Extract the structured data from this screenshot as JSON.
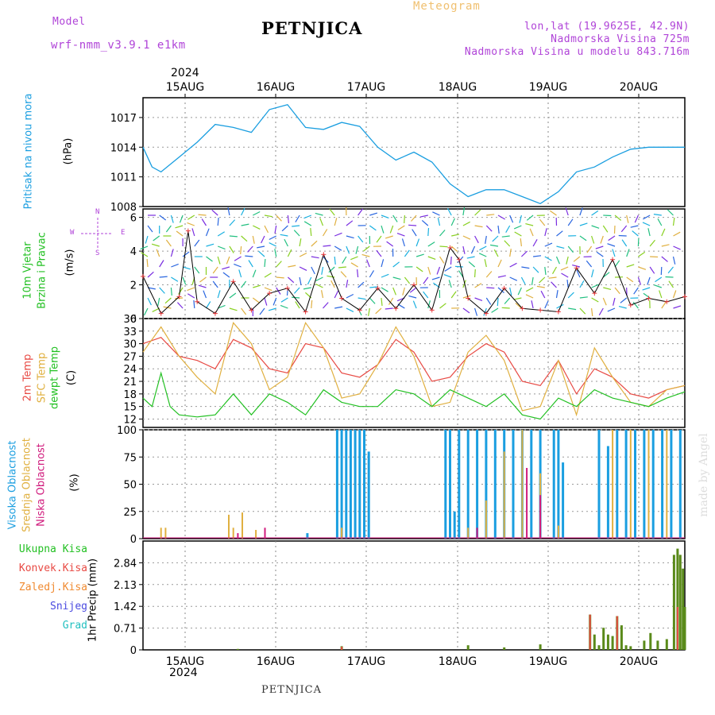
{
  "header": {
    "model_label": "Model",
    "model_name": "wrf-nmm_v3.9.1  e1km",
    "title": "PETNJICA",
    "meteogram_label": "Meteogram",
    "lonlat": "lon,lat (19.9625E, 42.9N)",
    "altitude": "Nadmorska Visina 725m",
    "model_altitude": "Nadmorska Visina u modelu 843.716m"
  },
  "axis_time": {
    "year": "2024",
    "days": [
      "15AUG",
      "16AUG",
      "17AUG",
      "18AUG",
      "19AUG",
      "20AUG"
    ]
  },
  "footer": {
    "station": "PETNJICA"
  },
  "watermark": "made by Angel",
  "colors": {
    "pressure": "#1a9ee0",
    "wind_line": "#000000",
    "wind_marker": "#e8383b",
    "t2m": "#e84a44",
    "sfc": "#e0b040",
    "dew": "#22c022",
    "cloud_high": "#1a9ee0",
    "cloud_mid": "#e0b040",
    "cloud_low": "#d01a7c",
    "precip_total": "#5a8a1a",
    "precip_conv": "#e84a44"
  },
  "panels": {
    "pressure": {
      "label": "Pritisak na nivou mora",
      "unit": "(hPa)"
    },
    "wind": {
      "label1": "10m Vjetar",
      "label2": "Brzina i Pravac",
      "unit": "(m/s)",
      "compass_n": "N",
      "compass_s": "S",
      "compass_w": "W",
      "compass_e": "E"
    },
    "temp": {
      "label_t2m": "2m Temp",
      "label_sfc": "SFC Temp",
      "label_dew": "dewpt Temp",
      "unit": "(C)"
    },
    "cloud": {
      "label_high": "Visoka Oblacnost",
      "label_mid": "Srednja Oblacnost",
      "label_low": "Niska Oblacnost",
      "unit": "(%)"
    },
    "precip": {
      "legend": [
        "Ukupna Kisa",
        "Konvek.Kisa",
        "Zaledj.Kisa",
        "Snijeg",
        "Grad"
      ],
      "legend_colors": [
        "#22c022",
        "#e84a44",
        "#f08a30",
        "#4a4ae0",
        "#22c0c0"
      ],
      "unit": "1hr Precip (mm)"
    }
  },
  "chart_data": [
    {
      "type": "line",
      "title": "Pritisak na nivou mora",
      "ylabel": "(hPa)",
      "ylim": [
        1008,
        1019
      ],
      "yticks": [
        "1008",
        "1011",
        "1014",
        "1017"
      ],
      "x_range_days": [
        0,
        6
      ],
      "series": [
        {
          "x": [
            0,
            0.1,
            0.2,
            0.4,
            0.6,
            0.8,
            1.0,
            1.2,
            1.4,
            1.6,
            1.8,
            2.0,
            2.2,
            2.4,
            2.6,
            2.8,
            3.0,
            3.2,
            3.4,
            3.6,
            3.8,
            4.0,
            4.2,
            4.4,
            4.6,
            4.8,
            5.0,
            5.2,
            5.4,
            5.6,
            5.8,
            6.0
          ],
          "y": [
            1014,
            1012,
            1011.5,
            1013,
            1014.5,
            1016.3,
            1016.0,
            1015.5,
            1017.8,
            1018.3,
            1016.0,
            1015.8,
            1016.5,
            1016.1,
            1014.0,
            1012.7,
            1013.5,
            1012.5,
            1010.3,
            1009.0,
            1009.7,
            1009.7,
            1009.0,
            1008.3,
            1009.5,
            1011.5,
            1012.0,
            1013.0,
            1013.8,
            1014.0,
            1014.0,
            1014.0
          ]
        }
      ]
    },
    {
      "type": "line",
      "title": "10m Vjetar Brzina i Pravac",
      "ylabel": "(m/s)",
      "ylim": [
        0,
        6.5
      ],
      "yticks": [
        "0",
        "2",
        "4",
        "6"
      ],
      "series": [
        {
          "x": [
            0,
            0.2,
            0.4,
            0.5,
            0.6,
            0.8,
            1.0,
            1.2,
            1.4,
            1.6,
            1.8,
            2.0,
            2.2,
            2.4,
            2.6,
            2.8,
            3.0,
            3.2,
            3.4,
            3.5,
            3.6,
            3.8,
            4.0,
            4.2,
            4.4,
            4.6,
            4.8,
            5.0,
            5.2,
            5.4,
            5.6,
            5.8,
            6.0
          ],
          "y": [
            2.5,
            0.3,
            1.3,
            5.2,
            1.0,
            0.3,
            2.2,
            0.5,
            1.5,
            1.8,
            0.4,
            3.8,
            1.2,
            0.5,
            1.8,
            0.6,
            2.0,
            0.5,
            4.2,
            3.5,
            1.2,
            0.3,
            1.8,
            0.6,
            0.5,
            0.4,
            3.0,
            1.5,
            3.5,
            0.8,
            1.2,
            1.0,
            1.3
          ]
        }
      ]
    },
    {
      "type": "line",
      "title": "Temperatura",
      "ylabel": "(C)",
      "ylim": [
        10,
        36
      ],
      "yticks": [
        "12",
        "15",
        "18",
        "21",
        "24",
        "27",
        "30",
        "33",
        "36"
      ],
      "series": [
        {
          "name": "2m Temp",
          "x": [
            0,
            0.2,
            0.4,
            0.6,
            0.8,
            1.0,
            1.2,
            1.4,
            1.6,
            1.8,
            2.0,
            2.2,
            2.4,
            2.6,
            2.8,
            3.0,
            3.2,
            3.4,
            3.6,
            3.8,
            4.0,
            4.2,
            4.4,
            4.6,
            4.8,
            5.0,
            5.2,
            5.4,
            5.6,
            5.8,
            6.0
          ],
          "y": [
            30,
            31.5,
            27,
            26,
            24,
            31,
            29,
            24,
            23,
            30,
            29,
            23,
            22,
            25,
            31,
            28,
            21,
            22,
            27,
            30,
            28,
            21,
            20,
            26,
            18,
            24,
            22,
            18,
            17,
            19,
            20
          ]
        },
        {
          "name": "SFC Temp",
          "x": [
            0,
            0.2,
            0.4,
            0.6,
            0.8,
            1.0,
            1.2,
            1.4,
            1.6,
            1.8,
            2.0,
            2.2,
            2.4,
            2.6,
            2.8,
            3.0,
            3.2,
            3.4,
            3.6,
            3.8,
            4.0,
            4.2,
            4.4,
            4.6,
            4.8,
            5.0,
            5.2,
            5.4,
            5.6,
            5.8,
            6.0
          ],
          "y": [
            28,
            34,
            27,
            22,
            18,
            35,
            30,
            19,
            22,
            35,
            29,
            17,
            18,
            25,
            34,
            27,
            15,
            16,
            28,
            32,
            26,
            14,
            15,
            26,
            13,
            29,
            22,
            16,
            15,
            19,
            20
          ]
        },
        {
          "name": "dewpt Temp",
          "x": [
            0,
            0.1,
            0.2,
            0.3,
            0.4,
            0.6,
            0.8,
            1.0,
            1.2,
            1.4,
            1.6,
            1.8,
            2.0,
            2.2,
            2.4,
            2.6,
            2.8,
            3.0,
            3.2,
            3.4,
            3.6,
            3.8,
            4.0,
            4.2,
            4.4,
            4.6,
            4.8,
            5.0,
            5.2,
            5.4,
            5.6,
            5.8,
            6.0
          ],
          "y": [
            17,
            15,
            23,
            15,
            13,
            12.5,
            13,
            18,
            13,
            18,
            16,
            13,
            19,
            16,
            15,
            15,
            19,
            18,
            15,
            19,
            17,
            15,
            18,
            13,
            12,
            17,
            15,
            19,
            17,
            16,
            15,
            17,
            18.5
          ]
        }
      ]
    },
    {
      "type": "bar",
      "title": "Oblacnost",
      "ylabel": "(%)",
      "ylim": [
        0,
        100
      ],
      "yticks": [
        "0",
        "25",
        "50",
        "75",
        "100"
      ],
      "series": [
        {
          "name": "Visoka Oblacnost",
          "x": [
            1.82,
            2.15,
            2.2,
            2.25,
            2.3,
            2.35,
            2.4,
            2.45,
            2.5,
            3.35,
            3.4,
            3.45,
            3.5,
            3.6,
            3.7,
            3.8,
            3.9,
            4.0,
            4.1,
            4.2,
            4.3,
            4.4,
            4.55,
            4.6,
            4.65,
            5.05,
            5.15,
            5.25,
            5.35,
            5.45,
            5.55,
            5.65,
            5.75,
            5.85,
            5.95
          ],
          "y": [
            5,
            100,
            100,
            100,
            100,
            100,
            100,
            100,
            80,
            100,
            100,
            25,
            100,
            100,
            100,
            100,
            100,
            100,
            100,
            100,
            100,
            100,
            100,
            100,
            70,
            100,
            85,
            100,
            100,
            100,
            100,
            100,
            100,
            100,
            100
          ]
        },
        {
          "name": "Srednja Oblacnost",
          "x": [
            0.2,
            0.25,
            0.95,
            1.0,
            1.1,
            1.25,
            2.2,
            3.6,
            3.8,
            4.0,
            4.2,
            4.4,
            4.6,
            5.2,
            5.4,
            5.6,
            5.8
          ],
          "y": [
            10,
            10,
            22,
            10,
            24,
            8,
            10,
            10,
            35,
            80,
            100,
            60,
            12,
            100,
            100,
            100,
            100
          ]
        },
        {
          "name": "Niska Oblacnost",
          "x": [
            1.05,
            1.35,
            3.7,
            4.25,
            4.4
          ],
          "y": [
            5,
            10,
            10,
            65,
            40
          ]
        }
      ]
    },
    {
      "type": "bar",
      "title": "1hr Precip",
      "ylabel": "1hr Precip (mm)",
      "ylim": [
        0,
        3.55
      ],
      "yticks": [
        "0",
        "0.71",
        "1.42",
        "2.13",
        "2.84"
      ],
      "series": [
        {
          "name": "Ukupna Kisa",
          "x": [
            1.05,
            2.2,
            3.6,
            4.0,
            4.4,
            4.95,
            5.0,
            5.05,
            5.1,
            5.15,
            5.2,
            5.25,
            5.3,
            5.35,
            5.4,
            5.55,
            5.62,
            5.7,
            5.8,
            5.88,
            5.92,
            5.95,
            5.98,
            6.0
          ],
          "y": [
            0.03,
            0.12,
            0.15,
            0.08,
            0.18,
            1.15,
            0.5,
            0.15,
            0.72,
            0.5,
            0.45,
            1.1,
            0.8,
            0.15,
            0.12,
            0.3,
            0.55,
            0.3,
            0.35,
            3.1,
            3.3,
            3.1,
            2.65,
            1.4
          ]
        },
        {
          "name": "Konvek.Kisa",
          "x": [
            2.2,
            4.95,
            5.25,
            5.92
          ],
          "y": [
            0.1,
            1.15,
            1.1,
            1.4
          ]
        }
      ]
    }
  ]
}
